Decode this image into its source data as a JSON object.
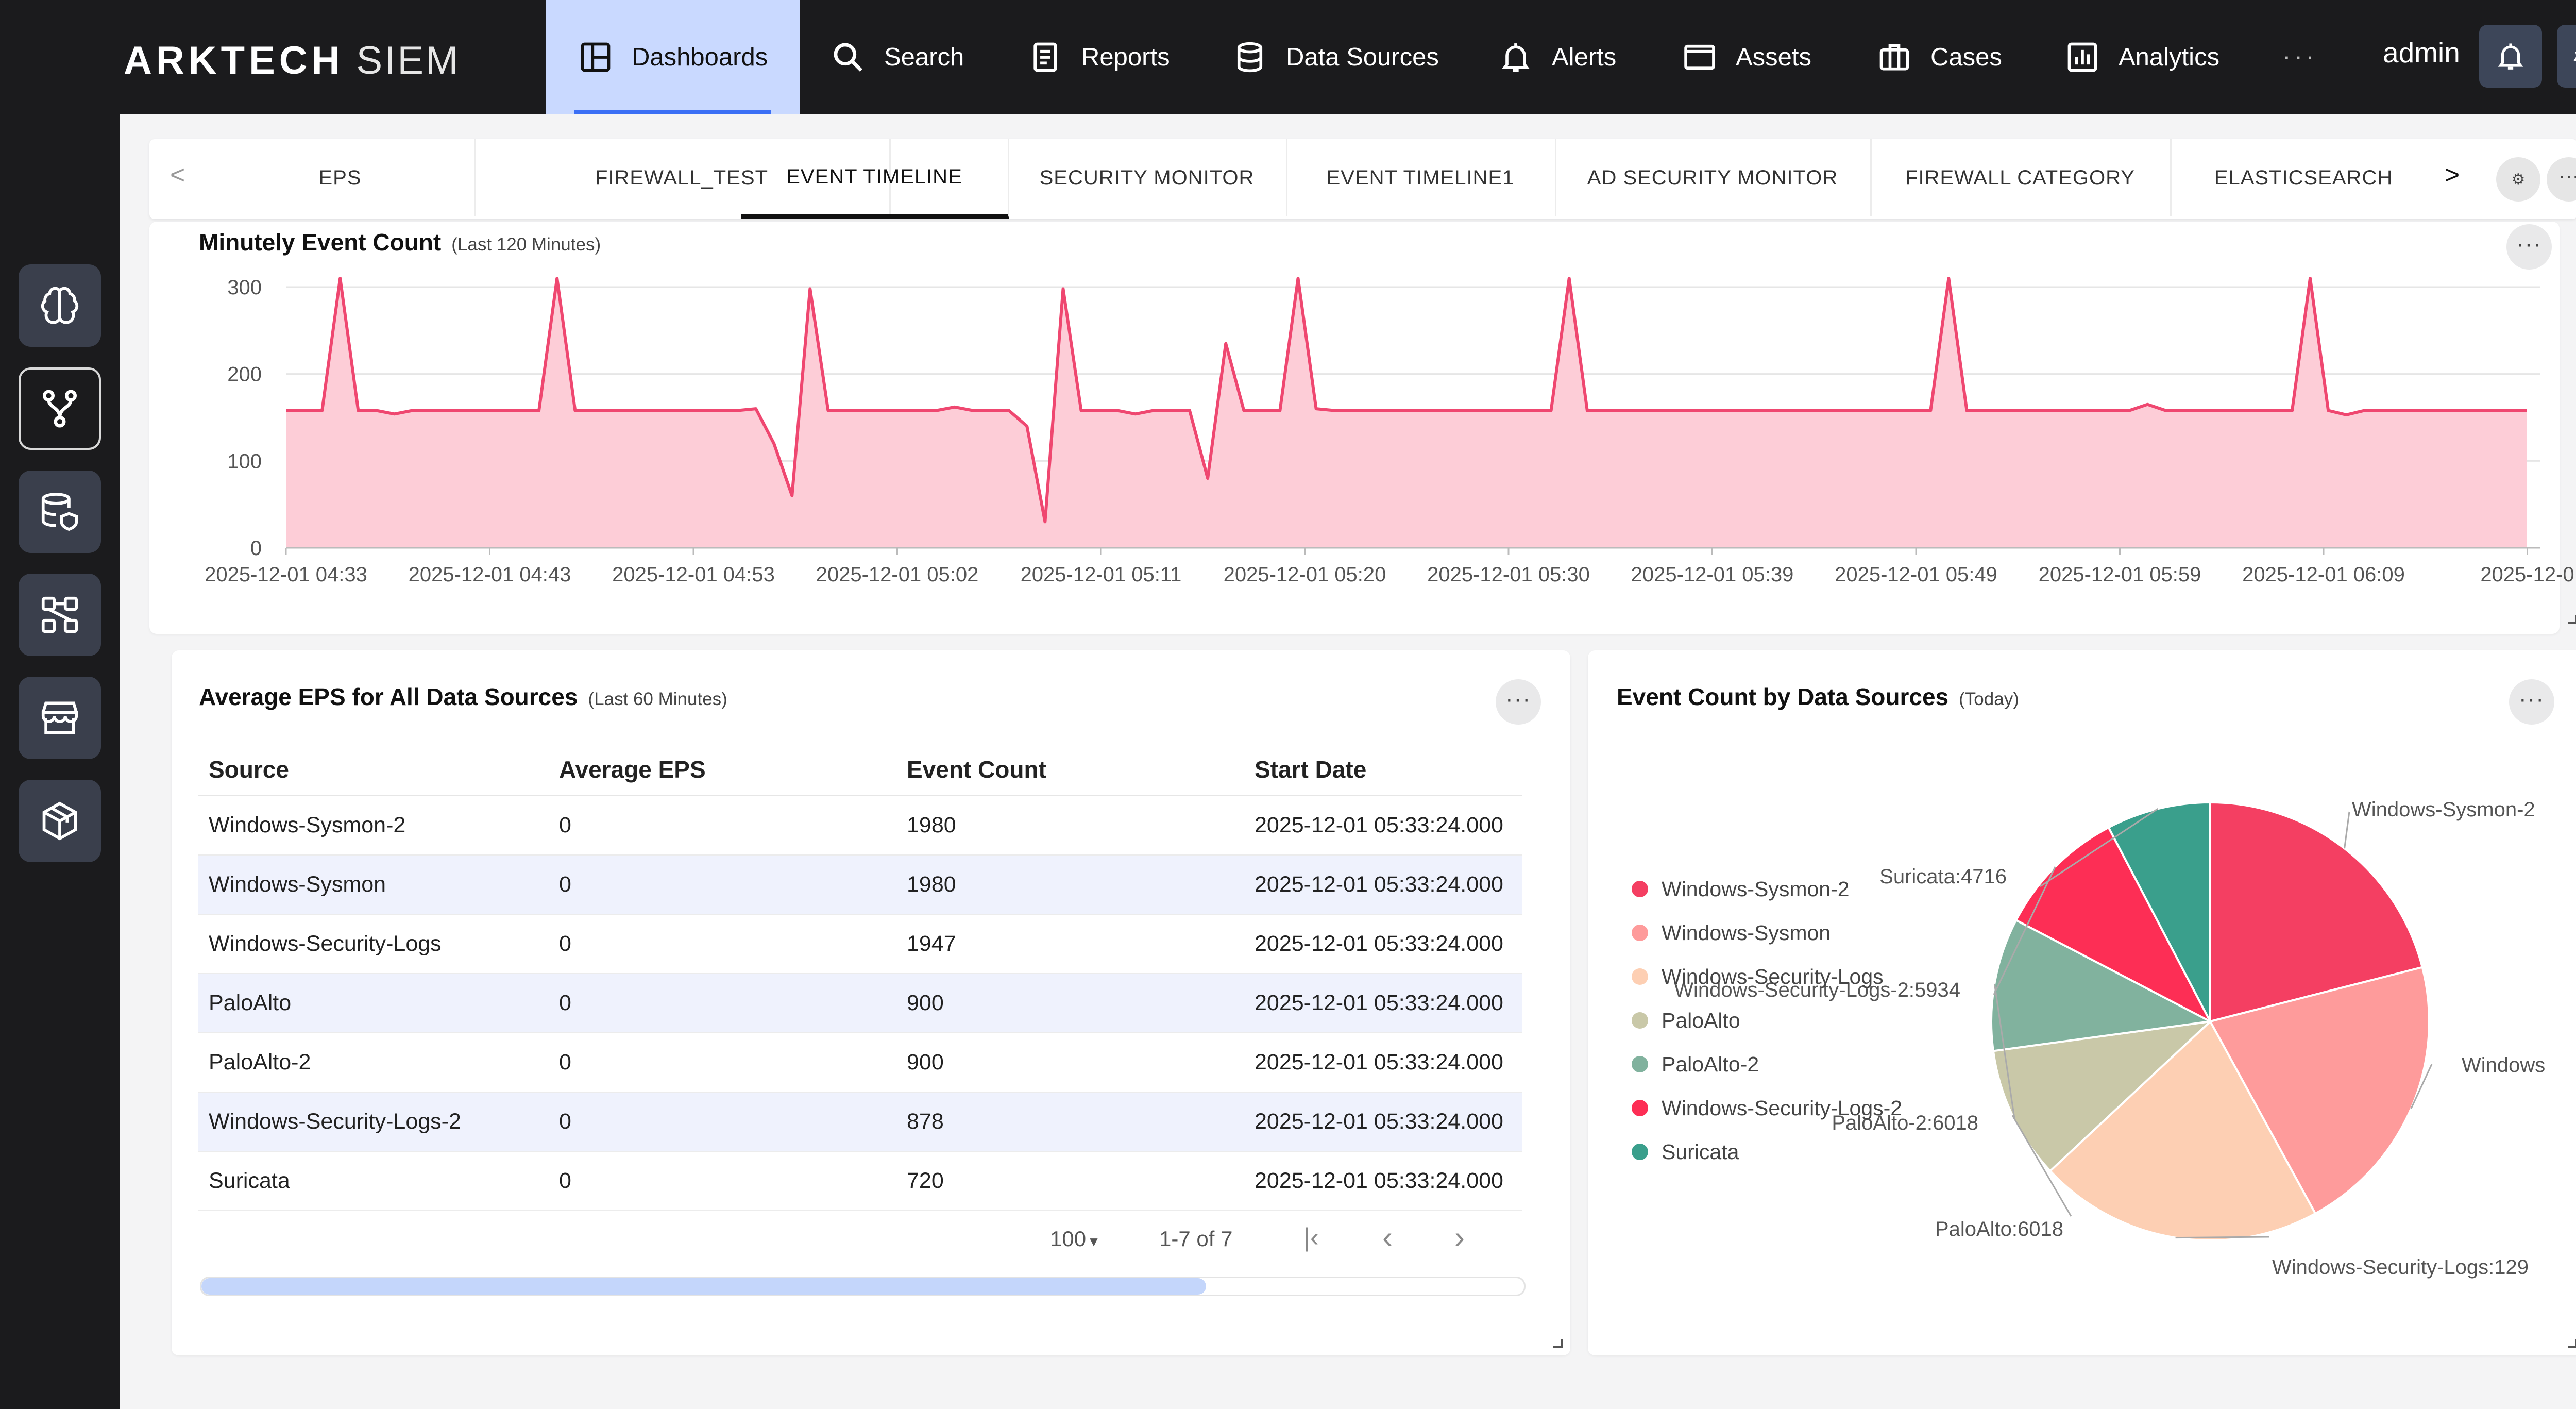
{
  "brand": {
    "name": "ARKTECH",
    "product": "SIEM"
  },
  "nav": [
    {
      "label": "Dashboards",
      "icon": "dashboard-icon",
      "active": true
    },
    {
      "label": "Search",
      "icon": "search-icon"
    },
    {
      "label": "Reports",
      "icon": "reports-icon"
    },
    {
      "label": "Data Sources",
      "icon": "database-icon"
    },
    {
      "label": "Alerts",
      "icon": "bell-icon"
    },
    {
      "label": "Assets",
      "icon": "monitor-icon"
    },
    {
      "label": "Cases",
      "icon": "briefcase-icon"
    },
    {
      "label": "Analytics",
      "icon": "analytics-icon"
    }
  ],
  "nav_more": "···",
  "user": "admin",
  "sidebar": [
    {
      "icon": "brain-icon"
    },
    {
      "icon": "branch-icon",
      "selected": true
    },
    {
      "icon": "database-shield-icon"
    },
    {
      "icon": "workflow-icon"
    },
    {
      "icon": "store-icon"
    },
    {
      "icon": "cube-icon"
    }
  ],
  "tabs": {
    "prev": "<",
    "next": ">",
    "items": [
      {
        "label": "EPS"
      },
      {
        "label": "FIREWALL_TEST"
      },
      {
        "label": "EVENT TIMELINE",
        "active": true
      },
      {
        "label": "SECURITY MONITOR"
      },
      {
        "label": "EVENT TIMELINE1"
      },
      {
        "label": "AD SECURITY MONITOR"
      },
      {
        "label": "FIREWALL CATEGORY"
      },
      {
        "label": "ELASTICSEARCH"
      }
    ]
  },
  "timeline": {
    "title": "Minutely Event Count",
    "subtitle": "(Last 120 Minutes)"
  },
  "eps_table": {
    "title": "Average EPS for All Data Sources",
    "subtitle": "(Last 60 Minutes)",
    "columns": [
      "Source",
      "Average EPS",
      "Event Count",
      "Start Date"
    ],
    "rows": [
      [
        "Windows-Sysmon-2",
        "0",
        "1980",
        "2025-12-01 05:33:24.000"
      ],
      [
        "Windows-Sysmon",
        "0",
        "1980",
        "2025-12-01 05:33:24.000"
      ],
      [
        "Windows-Security-Logs",
        "0",
        "1947",
        "2025-12-01 05:33:24.000"
      ],
      [
        "PaloAlto",
        "0",
        "900",
        "2025-12-01 05:33:24.000"
      ],
      [
        "PaloAlto-2",
        "0",
        "900",
        "2025-12-01 05:33:24.000"
      ],
      [
        "Windows-Security-Logs-2",
        "0",
        "878",
        "2025-12-01 05:33:24.000"
      ],
      [
        "Suricata",
        "0",
        "720",
        "2025-12-01 05:33:24.000"
      ]
    ],
    "page_size": "100",
    "range": "1-7 of 7"
  },
  "pie_card": {
    "title": "Event Count by Data Sources",
    "subtitle": "(Today)"
  },
  "chart_data": [
    {
      "type": "area",
      "title": "Minutely Event Count",
      "subtitle": "(Last 120 Minutes)",
      "ylim": [
        0,
        300
      ],
      "yticks": [
        0,
        100,
        200,
        300
      ],
      "xtick_labels": [
        "2025-12-01 04:33",
        "2025-12-01 04:43",
        "2025-12-01 04:53",
        "2025-12-01 05:02",
        "2025-12-01 05:11",
        "2025-12-01 05:20",
        "2025-12-01 05:30",
        "2025-12-01 05:39",
        "2025-12-01 05:49",
        "2025-12-01 05:59",
        "2025-12-01 06:09",
        "2025-12-0"
      ],
      "grid": true,
      "color": "#ef4770",
      "fill": "#fdcdd7",
      "series": [
        {
          "values": [
            158,
            158,
            158,
            310,
            158,
            158,
            154,
            158,
            158,
            158,
            158,
            158,
            158,
            158,
            158,
            310,
            158,
            158,
            158,
            158,
            158,
            158,
            158,
            158,
            158,
            158,
            160,
            120,
            60,
            298,
            158,
            158,
            158,
            158,
            158,
            158,
            158,
            162,
            158,
            158,
            158,
            140,
            30,
            298,
            158,
            158,
            158,
            154,
            158,
            158,
            158,
            80,
            235,
            158,
            158,
            158,
            310,
            160,
            158,
            158,
            158,
            158,
            158,
            158,
            158,
            158,
            158,
            158,
            158,
            158,
            158,
            310,
            158,
            158,
            158,
            158,
            158,
            158,
            158,
            158,
            158,
            158,
            158,
            158,
            158,
            158,
            158,
            158,
            158,
            158,
            158,
            158,
            310,
            158,
            158,
            158,
            158,
            158,
            158,
            158,
            158,
            158,
            158,
            165,
            158,
            158,
            158,
            158,
            158,
            158,
            158,
            158,
            310,
            158,
            153,
            158,
            158,
            158,
            158,
            158,
            158,
            158,
            158,
            158,
            158
          ]
        }
      ]
    },
    {
      "type": "pie",
      "title": "Event Count by Data Sources",
      "subtitle": "(Today)",
      "legend_position": "left",
      "slices": [
        {
          "label": "Windows-Sysmon-2",
          "value": 12900,
          "color": "#f43f62",
          "callout": "Windows-Sysmon-2"
        },
        {
          "label": "Windows-Sysmon",
          "value": 12900,
          "color": "#fe9b9b",
          "callout": "Windows"
        },
        {
          "label": "Windows-Security-Logs",
          "value": 12900,
          "color": "#fdcfb3",
          "callout": "Windows-Security-Logs:129"
        },
        {
          "label": "PaloAlto",
          "value": 6018,
          "color": "#c9c8a8",
          "callout": "PaloAlto:6018"
        },
        {
          "label": "PaloAlto-2",
          "value": 6018,
          "color": "#81b29e",
          "callout": "PaloAlto-2:6018"
        },
        {
          "label": "Windows-Security-Logs-2",
          "value": 5934,
          "color": "#fd2e55",
          "callout": "Windows-Security-Logs-2:5934"
        },
        {
          "label": "Suricata",
          "value": 4716,
          "color": "#3a9f8c",
          "callout": "Suricata:4716"
        }
      ]
    }
  ]
}
